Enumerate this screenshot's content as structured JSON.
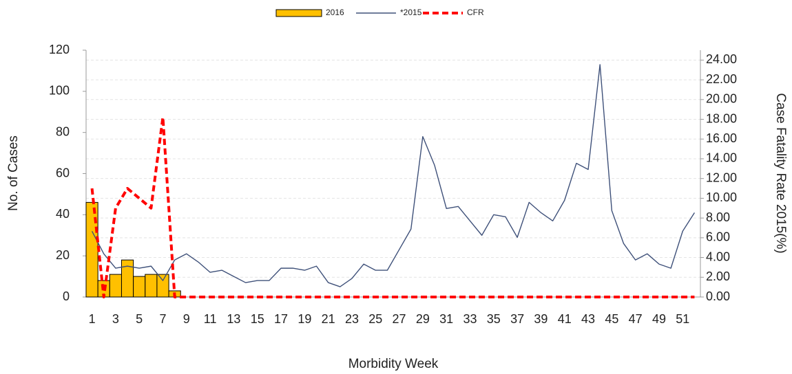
{
  "chart_data": {
    "type": "combo",
    "categories": [
      "1",
      null,
      "3",
      null,
      "5",
      null,
      "7",
      null,
      "9",
      null,
      "11",
      null,
      "13",
      null,
      "15",
      null,
      "17",
      null,
      "19",
      null,
      "21",
      null,
      "23",
      null,
      "25",
      null,
      "27",
      null,
      "29",
      null,
      "31",
      null,
      "33",
      null,
      "35",
      null,
      "37",
      null,
      "39",
      null,
      "41",
      null,
      "43",
      null,
      "45",
      null,
      "47",
      null,
      "49",
      null,
      "51",
      null
    ],
    "series": [
      {
        "name": "2016",
        "type": "bar",
        "color": "#FFC000",
        "values": [
          46,
          8,
          11,
          18,
          10,
          11,
          11,
          3,
          null,
          null,
          null,
          null,
          null,
          null,
          null,
          null,
          null,
          null,
          null,
          null,
          null,
          null,
          null,
          null,
          null,
          null,
          null,
          null,
          null,
          null,
          null,
          null,
          null,
          null,
          null,
          null,
          null,
          null,
          null,
          null,
          null,
          null,
          null,
          null,
          null,
          null,
          null,
          null,
          null,
          null,
          null,
          null
        ]
      },
      {
        "name": "*2015",
        "type": "line",
        "color": "#3E5079",
        "values": [
          32,
          21,
          14,
          15,
          14,
          15,
          8,
          18,
          21,
          17,
          12,
          13,
          10,
          7,
          8,
          8,
          14,
          14,
          13,
          15,
          7,
          5,
          9,
          16,
          13,
          13,
          23,
          33,
          78,
          64,
          43,
          44,
          37,
          30,
          40,
          39,
          29,
          46,
          41,
          37,
          47,
          65,
          62,
          113,
          42,
          26,
          18,
          21,
          16,
          14,
          32,
          41
        ]
      },
      {
        "name": "CFR",
        "type": "dashed-line",
        "axis": "y2",
        "color": "#FF0000",
        "values": [
          11,
          0,
          9,
          11,
          10,
          9,
          18.2,
          0,
          0,
          0,
          0,
          0,
          0,
          0,
          0,
          0,
          0,
          0,
          0,
          0,
          0,
          0,
          0,
          0,
          0,
          0,
          0,
          0,
          0,
          0,
          0,
          0,
          0,
          0,
          0,
          0,
          0,
          0,
          0,
          0,
          0,
          0,
          0,
          0,
          0,
          0,
          0,
          0,
          0,
          0,
          0,
          0
        ]
      }
    ],
    "ylabel": "No. of Cases",
    "y2label": "Case Fatality Rate 2015(%)",
    "xlabel": "Morbidity Week",
    "ylim": [
      0,
      120
    ],
    "yticks": [
      0,
      20,
      40,
      60,
      80,
      100,
      120
    ],
    "y2lim": [
      0,
      25
    ],
    "y2ticks": [
      {
        "value": 0,
        "label": "0.00"
      },
      {
        "value": 2,
        "label": "2.00"
      },
      {
        "value": 4,
        "label": "4.00"
      },
      {
        "value": 6,
        "label": "6.00"
      },
      {
        "value": 8,
        "label": "8.00"
      },
      {
        "value": 10,
        "label": "10.00"
      },
      {
        "value": 12,
        "label": "12.00"
      },
      {
        "value": 14,
        "label": "14.00"
      },
      {
        "value": 16,
        "label": "16.00"
      },
      {
        "value": 18,
        "label": "18.00"
      },
      {
        "value": 20,
        "label": "20.00"
      },
      {
        "value": 22,
        "label": "22.00"
      },
      {
        "value": 24,
        "label": "24.00"
      }
    ],
    "grid": true,
    "legend": "top"
  }
}
